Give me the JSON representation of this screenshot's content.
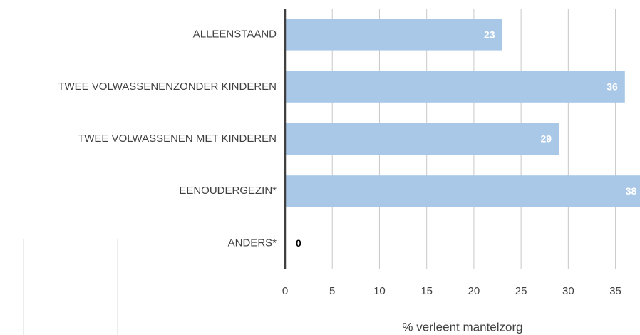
{
  "chart_data": {
    "type": "bar",
    "orientation": "horizontal",
    "categories": [
      "ALLEENSTAAND",
      "TWEE VOLWASSENENZONDER KINDEREN",
      "TWEE VOLWASSENEN MET KINDEREN",
      "EENOUDERGEZIN*",
      "ANDERS*"
    ],
    "values": [
      23,
      36,
      29,
      38,
      0
    ],
    "color": "#a9c8e8",
    "xlabel": "% verleent mantelzorg",
    "xlim": [
      0,
      37.6
    ],
    "xticks": [
      0,
      5,
      10,
      15,
      20,
      25,
      30,
      35
    ],
    "grid": true
  }
}
